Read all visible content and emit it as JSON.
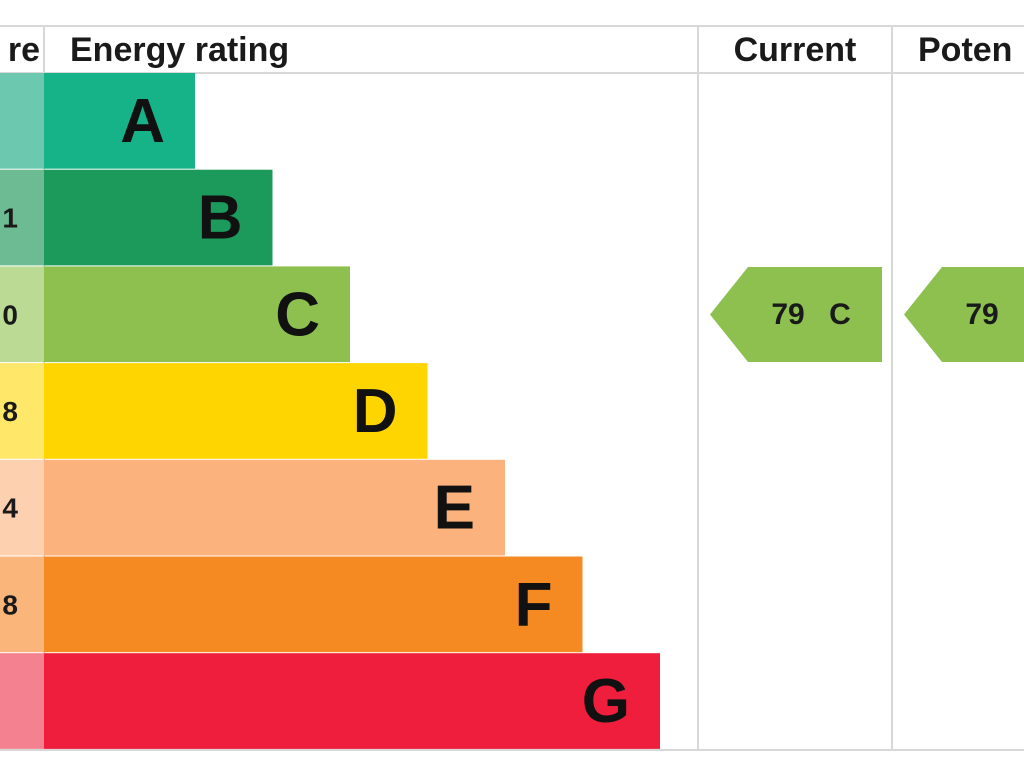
{
  "header": {
    "score": "re",
    "energy_rating": "Energy rating",
    "current": "Current",
    "potential": "Poten"
  },
  "bands": [
    {
      "letter": "A"
    },
    {
      "letter": "B",
      "score": "1"
    },
    {
      "letter": "C",
      "score": "0"
    },
    {
      "letter": "D",
      "score": "8"
    },
    {
      "letter": "E",
      "score": "4"
    },
    {
      "letter": "F",
      "score": "8"
    },
    {
      "letter": "G"
    }
  ],
  "current": {
    "value": 79,
    "band": "C"
  },
  "potential": {
    "value": 79
  }
}
